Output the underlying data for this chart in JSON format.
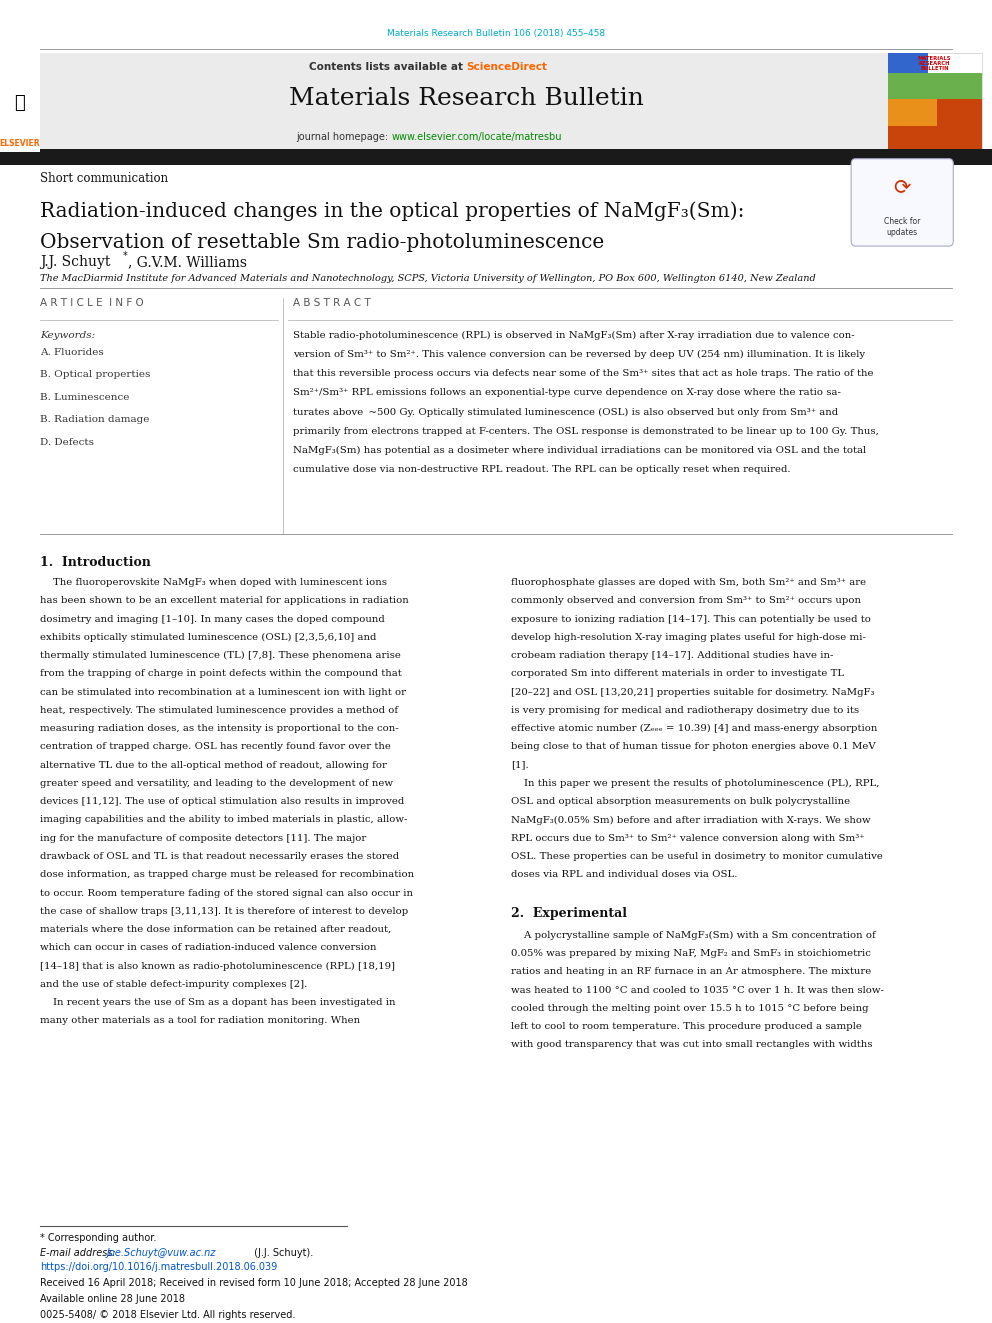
{
  "page_width": 9.92,
  "page_height": 13.23,
  "bg_color": "#ffffff",
  "top_citation": "Materials Research Bulletin 106 (2018) 455–458",
  "top_citation_color": "#00aacc",
  "journal_name": "Materials Research Bulletin",
  "contents_text": "Contents lists available at ",
  "sciencedirect_text": "ScienceDirect",
  "sciencedirect_color": "#ff6600",
  "journal_url_prefix": "journal homepage: ",
  "journal_url": "www.elsevier.com/locate/matresbu",
  "journal_url_color": "#008800",
  "header_bg": "#ebebeb",
  "black_bar_color": "#1a1a1a",
  "section_type": "Short communication",
  "paper_title_line1": "Radiation-induced changes in the optical properties of NaMgF₃(Sm):",
  "paper_title_line2": "Observation of resettable Sm radio-photoluminescence",
  "affiliation": "The MacDiarmid Institute for Advanced Materials and Nanotechnology, SCPS, Victoria University of Wellington, PO Box 600, Wellington 6140, New Zealand",
  "article_info_header": "A R T I C L E  I N F O",
  "abstract_header": "A B S T R A C T",
  "keywords_label": "Keywords:",
  "keywords": [
    "A. Fluorides",
    "B. Optical properties",
    "B. Luminescence",
    "B. Radiation damage",
    "D. Defects"
  ],
  "abstract_lines": [
    "Stable radio-photoluminescence (RPL) is observed in NaMgF₃(Sm) after X-ray irradiation due to valence con-",
    "version of Sm³⁺ to Sm²⁺. This valence conversion can be reversed by deep UV (254 nm) illumination. It is likely",
    "that this reversible process occurs via defects near some of the Sm³⁺ sites that act as hole traps. The ratio of the",
    "Sm²⁺/Sm³⁺ RPL emissions follows an exponential-type curve dependence on X-ray dose where the ratio sa-",
    "turates above  ~500 Gy. Optically stimulated luminescence (OSL) is also observed but only from Sm³⁺ and",
    "primarily from electrons trapped at F-centers. The OSL response is demonstrated to be linear up to 100 Gy. Thus,",
    "NaMgF₃(Sm) has potential as a dosimeter where individual irradiations can be monitored via OSL and the total",
    "cumulative dose via non-destructive RPL readout. The RPL can be optically reset when required."
  ],
  "intro_header": "1.  Introduction",
  "intro_left_lines": [
    "    The fluoroperovskite NaMgF₃ when doped with luminescent ions",
    "has been shown to be an excellent material for applications in radiation",
    "dosimetry and imaging [1–10]. In many cases the doped compound",
    "exhibits optically stimulated luminescence (OSL) [2,3,5,6,10] and",
    "thermally stimulated luminescence (TL) [7,8]. These phenomena arise",
    "from the trapping of charge in point defects within the compound that",
    "can be stimulated into recombination at a luminescent ion with light or",
    "heat, respectively. The stimulated luminescence provides a method of",
    "measuring radiation doses, as the intensity is proportional to the con-",
    "centration of trapped charge. OSL has recently found favor over the",
    "alternative TL due to the all-optical method of readout, allowing for",
    "greater speed and versatility, and leading to the development of new",
    "devices [11,12]. The use of optical stimulation also results in improved",
    "imaging capabilities and the ability to imbed materials in plastic, allow-",
    "ing for the manufacture of composite detectors [11]. The major",
    "drawback of OSL and TL is that readout necessarily erases the stored",
    "dose information, as trapped charge must be released for recombination",
    "to occur. Room temperature fading of the stored signal can also occur in",
    "the case of shallow traps [3,11,13]. It is therefore of interest to develop",
    "materials where the dose information can be retained after readout,",
    "which can occur in cases of radiation-induced valence conversion",
    "[14–18] that is also known as radio-photoluminescence (RPL) [18,19]",
    "and the use of stable defect-impurity complexes [2].",
    "    In recent years the use of Sm as a dopant has been investigated in",
    "many other materials as a tool for radiation monitoring. When"
  ],
  "intro_right_lines": [
    "fluorophosphate glasses are doped with Sm, both Sm²⁺ and Sm³⁺ are",
    "commonly observed and conversion from Sm³⁺ to Sm²⁺ occurs upon",
    "exposure to ionizing radiation [14–17]. This can potentially be used to",
    "develop high-resolution X-ray imaging plates useful for high-dose mi-",
    "crobeam radiation therapy [14–17]. Additional studies have in-",
    "corporated Sm into different materials in order to investigate TL",
    "[20–22] and OSL [13,20,21] properties suitable for dosimetry. NaMgF₃",
    "is very promising for medical and radiotherapy dosimetry due to its",
    "effective atomic number (Zₑₑₑ = 10.39) [4] and mass-energy absorption",
    "being close to that of human tissue for photon energies above 0.1 MeV",
    "[1].",
    "    In this paper we present the results of photoluminescence (PL), RPL,",
    "OSL and optical absorption measurements on bulk polycrystalline",
    "NaMgF₃(0.05% Sm) before and after irradiation with X-rays. We show",
    "RPL occurs due to Sm³⁺ to Sm²⁺ valence conversion along with Sm³⁺",
    "OSL. These properties can be useful in dosimetry to monitor cumulative",
    "doses via RPL and individual doses via OSL."
  ],
  "exp_header": "2.  Experimental",
  "exp_lines": [
    "    A polycrystalline sample of NaMgF₃(Sm) with a Sm concentration of",
    "0.05% was prepared by mixing NaF, MgF₂ and SmF₃ in stoichiometric",
    "ratios and heating in an RF furnace in an Ar atmosphere. The mixture",
    "was heated to 1100 °C and cooled to 1035 °C over 1 h. It was then slow-",
    "cooled through the melting point over 15.5 h to 1015 °C before being",
    "left to cool to room temperature. This procedure produced a sample",
    "with good transparency that was cut into small rectangles with widths"
  ],
  "footer_star": "* Corresponding author.",
  "footer_email_label": "E-mail address: ",
  "footer_email": "Joe.Schuyt@vuw.ac.nz",
  "footer_email_color": "#0055cc",
  "footer_email_rest": " (J.J. Schuyt).",
  "footer_doi_color": "#0055cc",
  "footer_doi": "https://doi.org/10.1016/j.matresbull.2018.06.039",
  "footer_received": "Received 16 April 2018; Received in revised form 10 June 2018; Accepted 28 June 2018",
  "footer_available": "Available online 28 June 2018",
  "footer_copyright": "0025-5408/ © 2018 Elsevier Ltd. All rights reserved.",
  "elsevier_orange": "#ff6600"
}
